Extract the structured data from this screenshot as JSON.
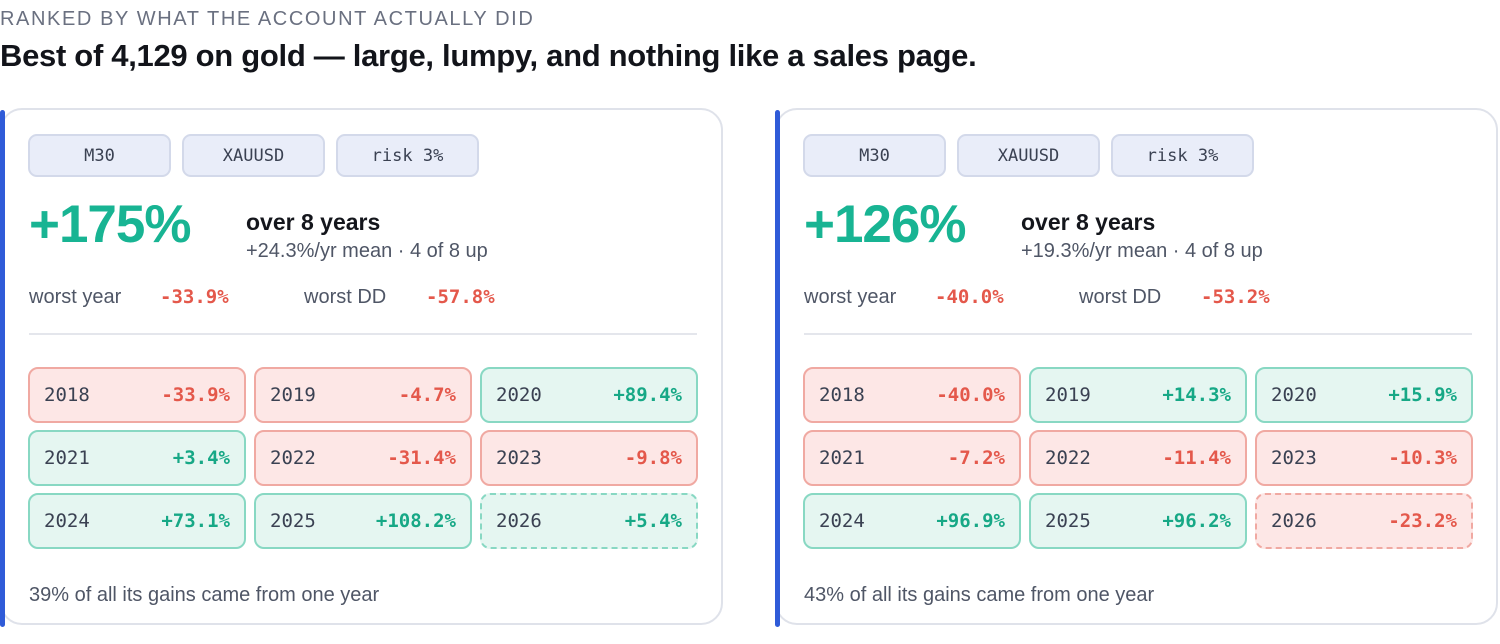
{
  "eyebrow": "RANKED BY WHAT THE ACCOUNT ACTUALLY DID",
  "headline": "Best of 4,129 on gold — large, lumpy, and nothing like a sales page.",
  "colors": {
    "accent_bar": "#2f5bd8",
    "positive": "#17a886",
    "negative": "#e4584b",
    "positive_bg": "#e5f6f1",
    "negative_bg": "#fde7e6",
    "chip_bg": "#e9edf9"
  },
  "cards": [
    {
      "chips": [
        "M30",
        "XAUUSD",
        "risk 3%"
      ],
      "total_return": "+175%",
      "period": "over 8 years",
      "summary": "+24.3%/yr mean · 4 of 8 up",
      "worst_year_label": "worst year",
      "worst_year": "-33.9%",
      "worst_dd_label": "worst DD",
      "worst_dd": "-57.8%",
      "years": [
        {
          "year": "2018",
          "value": "-33.9%",
          "sign": "neg",
          "partial": false
        },
        {
          "year": "2019",
          "value": "-4.7%",
          "sign": "neg",
          "partial": false
        },
        {
          "year": "2020",
          "value": "+89.4%",
          "sign": "pos",
          "partial": false
        },
        {
          "year": "2021",
          "value": "+3.4%",
          "sign": "pos",
          "partial": false
        },
        {
          "year": "2022",
          "value": "-31.4%",
          "sign": "neg",
          "partial": false
        },
        {
          "year": "2023",
          "value": "-9.8%",
          "sign": "neg",
          "partial": false
        },
        {
          "year": "2024",
          "value": "+73.1%",
          "sign": "pos",
          "partial": false
        },
        {
          "year": "2025",
          "value": "+108.2%",
          "sign": "pos",
          "partial": false
        },
        {
          "year": "2026",
          "value": "+5.4%",
          "sign": "pos",
          "partial": true
        }
      ],
      "footnote": "39% of all its gains came from one year"
    },
    {
      "chips": [
        "M30",
        "XAUUSD",
        "risk 3%"
      ],
      "total_return": "+126%",
      "period": "over 8 years",
      "summary": "+19.3%/yr mean · 4 of 8 up",
      "worst_year_label": "worst year",
      "worst_year": "-40.0%",
      "worst_dd_label": "worst DD",
      "worst_dd": "-53.2%",
      "years": [
        {
          "year": "2018",
          "value": "-40.0%",
          "sign": "neg",
          "partial": false
        },
        {
          "year": "2019",
          "value": "+14.3%",
          "sign": "pos",
          "partial": false
        },
        {
          "year": "2020",
          "value": "+15.9%",
          "sign": "pos",
          "partial": false
        },
        {
          "year": "2021",
          "value": "-7.2%",
          "sign": "neg",
          "partial": false
        },
        {
          "year": "2022",
          "value": "-11.4%",
          "sign": "neg",
          "partial": false
        },
        {
          "year": "2023",
          "value": "-10.3%",
          "sign": "neg",
          "partial": false
        },
        {
          "year": "2024",
          "value": "+96.9%",
          "sign": "pos",
          "partial": false
        },
        {
          "year": "2025",
          "value": "+96.2%",
          "sign": "pos",
          "partial": false
        },
        {
          "year": "2026",
          "value": "-23.2%",
          "sign": "neg",
          "partial": true
        }
      ],
      "footnote": "43% of all its gains came from one year"
    }
  ]
}
